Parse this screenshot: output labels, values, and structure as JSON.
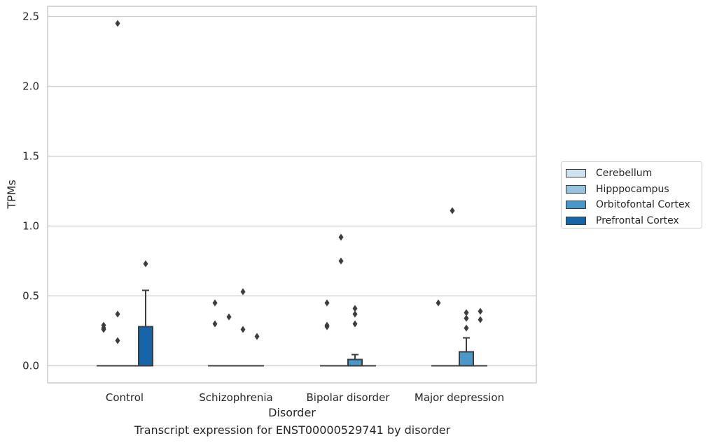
{
  "caption": "Transcript expression for ENST00000529741 by disorder",
  "chart_data": {
    "type": "box",
    "xlabel": "Disorder",
    "ylabel": "TPMs",
    "ylim": [
      -0.12,
      2.58
    ],
    "yticks": [
      0.0,
      0.5,
      1.0,
      1.5,
      2.0,
      2.5
    ],
    "ytick_labels": [
      "0.0",
      "0.5",
      "1.0",
      "1.5",
      "2.0",
      "2.5"
    ],
    "grid": true,
    "legend_position": "right",
    "categories": [
      "Control",
      "Schizophrenia",
      "Bipolar disorder",
      "Major depression"
    ],
    "series": [
      {
        "name": "Cerebellum",
        "color": "#d0e1f2",
        "boxes": [
          {
            "q1": 0,
            "median": 0,
            "q3": 0,
            "whislo": 0,
            "whishi": 0,
            "fliers": [
              0.26,
              0.27,
              0.29
            ]
          },
          {
            "q1": 0,
            "median": 0,
            "q3": 0,
            "whislo": 0,
            "whishi": 0,
            "fliers": [
              0.3,
              0.45
            ]
          },
          {
            "q1": 0,
            "median": 0,
            "q3": 0,
            "whislo": 0,
            "whishi": 0,
            "fliers": [
              0.28,
              0.29,
              0.45
            ]
          },
          {
            "q1": 0,
            "median": 0,
            "q3": 0,
            "whislo": 0,
            "whishi": 0,
            "fliers": [
              0.45
            ]
          }
        ]
      },
      {
        "name": "Hipppocampus",
        "color": "#94c4df",
        "boxes": [
          {
            "q1": 0,
            "median": 0,
            "q3": 0,
            "whislo": 0,
            "whishi": 0,
            "fliers": [
              0.18,
              0.37,
              2.45
            ]
          },
          {
            "q1": 0,
            "median": 0,
            "q3": 0,
            "whislo": 0,
            "whishi": 0,
            "fliers": [
              0.35
            ]
          },
          {
            "q1": 0,
            "median": 0,
            "q3": 0,
            "whislo": 0,
            "whishi": 0,
            "fliers": [
              0.75,
              0.92
            ]
          },
          {
            "q1": 0,
            "median": 0,
            "q3": 0,
            "whislo": 0,
            "whishi": 0,
            "fliers": [
              1.11
            ]
          }
        ]
      },
      {
        "name": "Orbitofontal Cortex",
        "color": "#4a98c9",
        "boxes": [
          {
            "q1": 0,
            "median": 0,
            "q3": 0,
            "whislo": 0,
            "whishi": 0,
            "fliers": []
          },
          {
            "q1": 0,
            "median": 0,
            "q3": 0,
            "whislo": 0,
            "whishi": 0,
            "fliers": [
              0.26,
              0.53
            ]
          },
          {
            "q1": 0,
            "median": 0,
            "q3": 0.045,
            "whislo": 0,
            "whishi": 0.08,
            "fliers": [
              0.3,
              0.37,
              0.41
            ]
          },
          {
            "q1": 0,
            "median": 0,
            "q3": 0.1,
            "whislo": 0,
            "whishi": 0.2,
            "fliers": [
              0.27,
              0.34,
              0.38
            ]
          }
        ]
      },
      {
        "name": "Prefrontal Cortex",
        "color": "#1764ab",
        "boxes": [
          {
            "q1": 0,
            "median": 0,
            "q3": 0.28,
            "whislo": 0,
            "whishi": 0.54,
            "fliers": [
              0.73
            ]
          },
          {
            "q1": 0,
            "median": 0,
            "q3": 0,
            "whislo": 0,
            "whishi": 0,
            "fliers": [
              0.21
            ]
          },
          {
            "q1": 0,
            "median": 0,
            "q3": 0,
            "whislo": 0,
            "whishi": 0,
            "fliers": []
          },
          {
            "q1": 0,
            "median": 0,
            "q3": 0,
            "whislo": 0,
            "whishi": 0,
            "fliers": [
              0.33,
              0.39
            ]
          }
        ]
      }
    ]
  }
}
